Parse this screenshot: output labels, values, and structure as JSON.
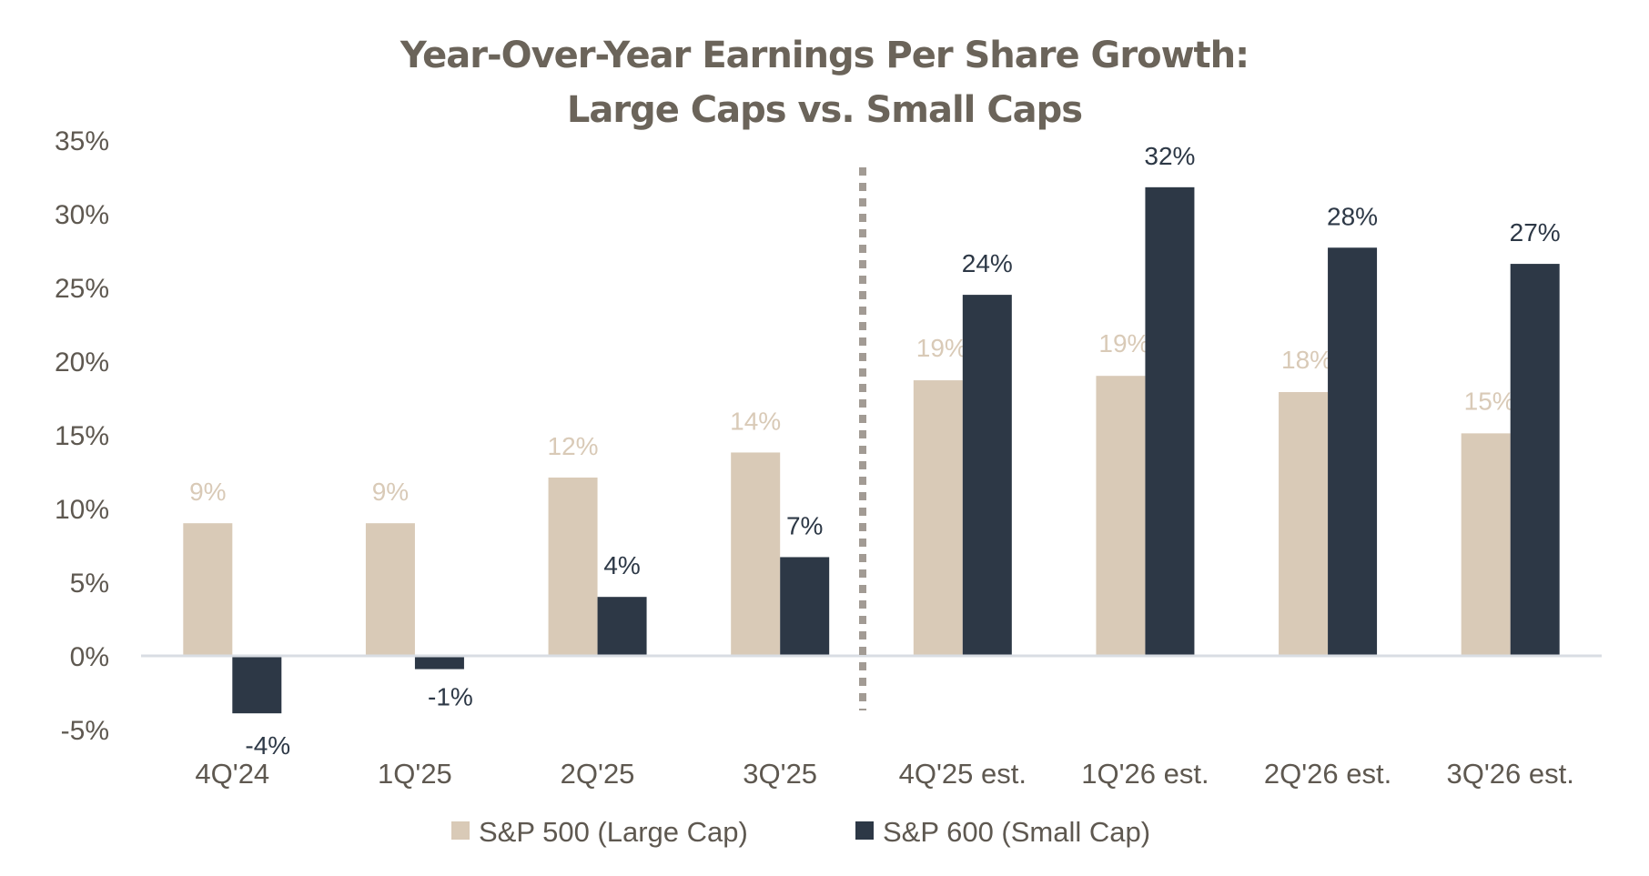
{
  "chart_data": {
    "type": "bar",
    "title": [
      "Year-Over-Year Earnings Per Share Growth:",
      "Large Caps vs. Small Caps"
    ],
    "xlabel": "",
    "ylabel": "",
    "ylim": [
      -5,
      35
    ],
    "yticks": [
      "35%",
      "30%",
      "25%",
      "20%",
      "15%",
      "10%",
      "5%",
      "0%",
      "-5%"
    ],
    "ytick_values": [
      35,
      30,
      25,
      20,
      15,
      10,
      5,
      0,
      -5
    ],
    "grid": false,
    "legend_position": "bottom",
    "divider_after_category": "3Q'25",
    "categories": [
      "4Q'24",
      "1Q'25",
      "2Q'25",
      "3Q'25",
      "4Q'25 est.",
      "1Q'26 est.",
      "2Q'26 est.",
      "3Q'26 est."
    ],
    "series": [
      {
        "name": "S&P 500 (Large Cap)",
        "color": "#d9cab7",
        "label_color": "#d9cab7",
        "values": [
          9.0,
          9.0,
          12.1,
          13.8,
          18.7,
          19.0,
          17.9,
          15.1
        ],
        "labels": [
          "9%",
          "9%",
          "12%",
          "14%",
          "19%",
          "19%",
          "18%",
          "15%"
        ]
      },
      {
        "name": "S&P 600 (Small Cap)",
        "color": "#2d3846",
        "label_color": "#2d3846",
        "values": [
          -3.9,
          -0.9,
          4.0,
          6.7,
          24.5,
          31.8,
          27.7,
          26.6
        ],
        "labels": [
          "-4%",
          "-1%",
          "4%",
          "7%",
          "24%",
          "32%",
          "28%",
          "27%"
        ]
      }
    ]
  }
}
